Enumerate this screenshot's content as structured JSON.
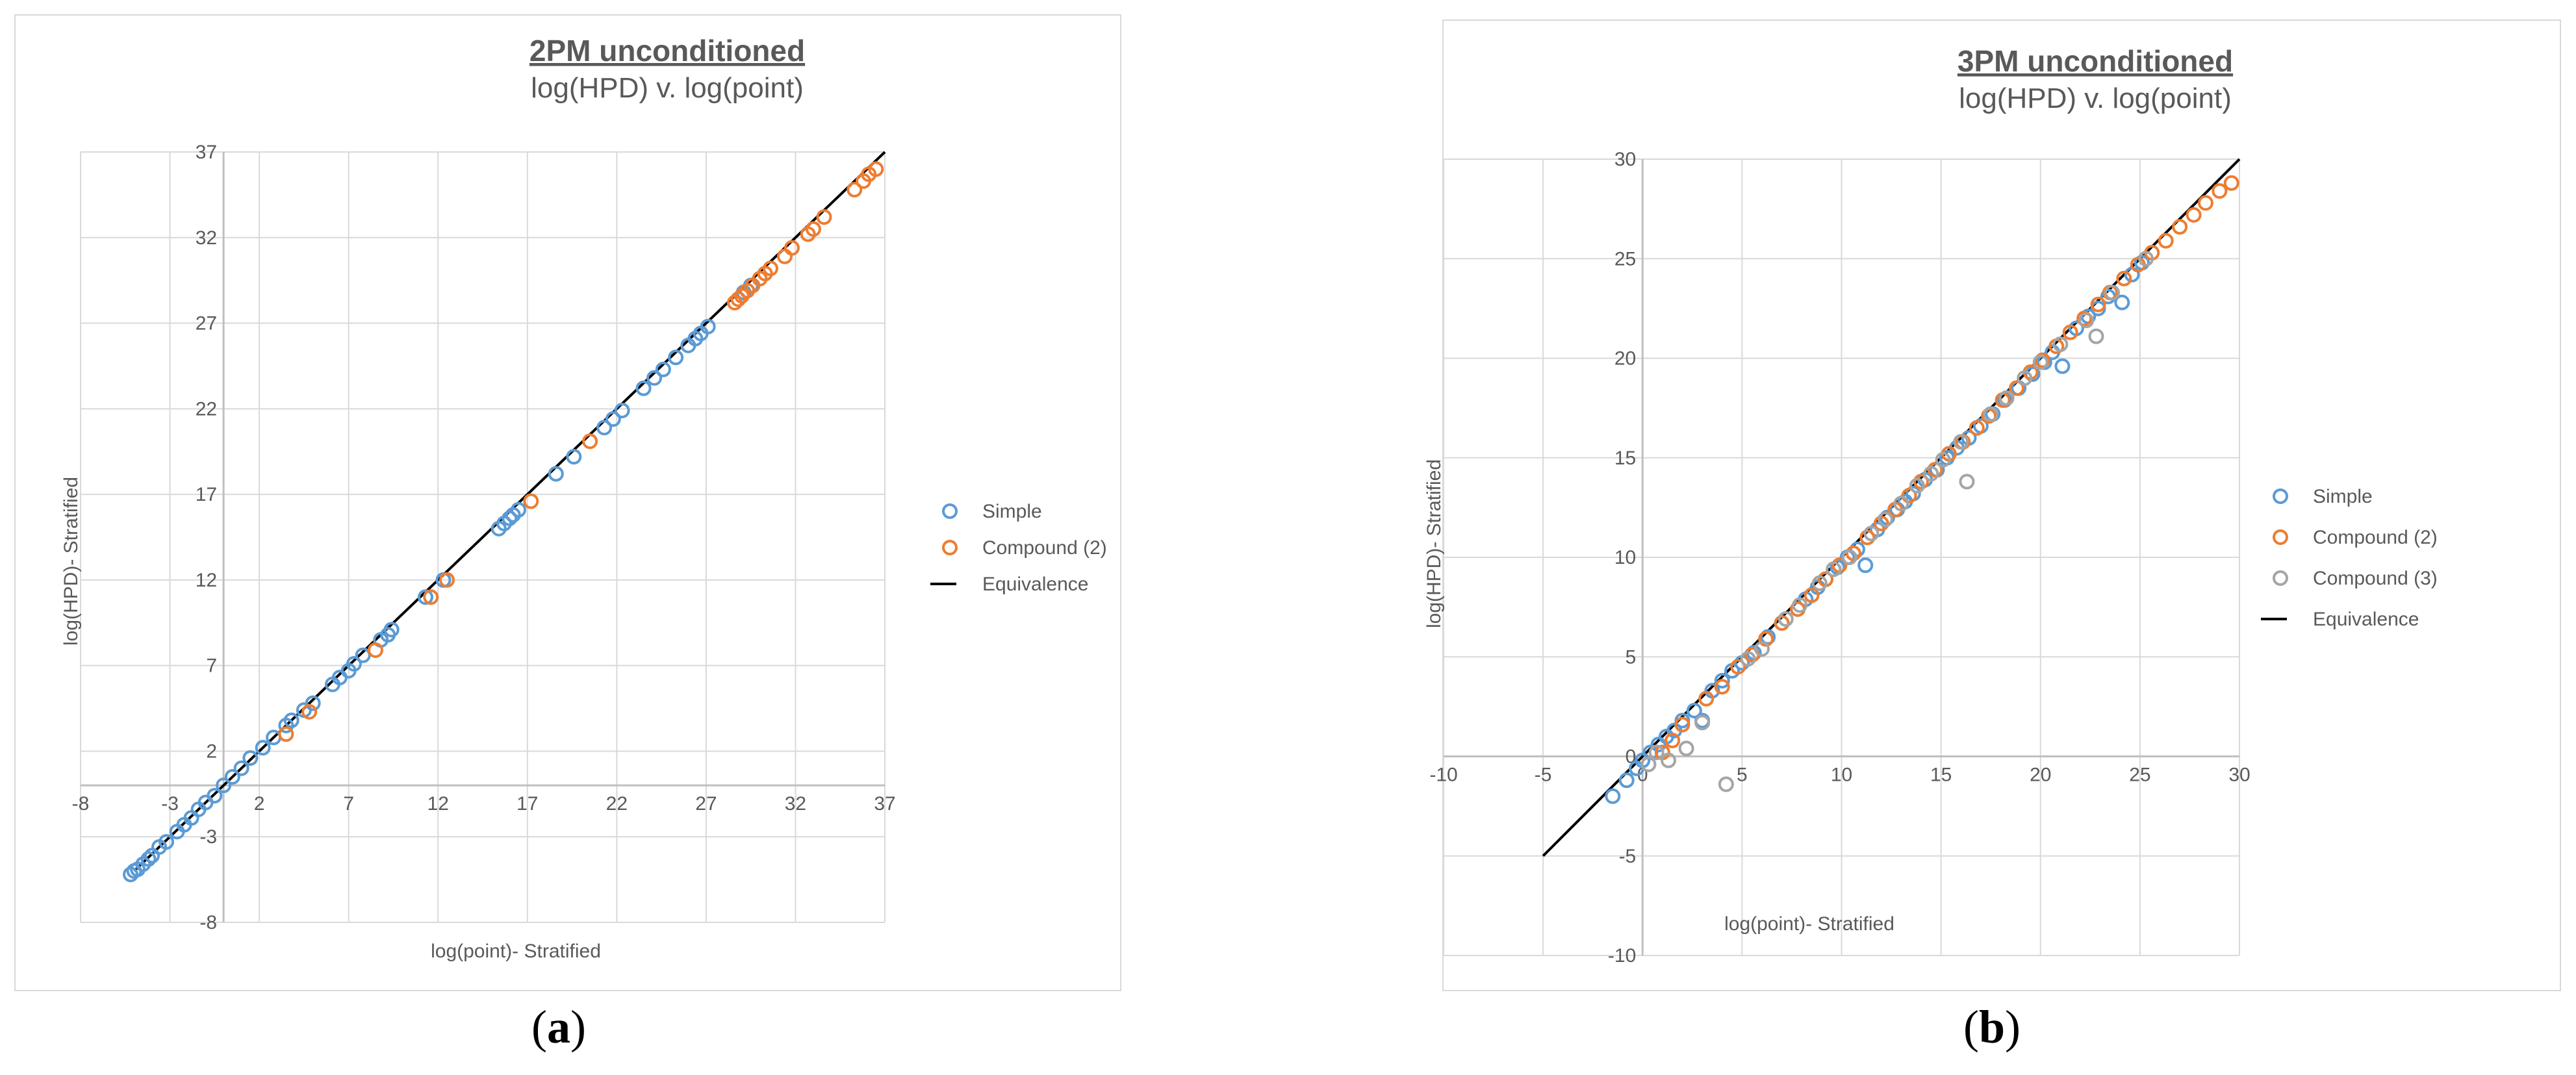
{
  "captions": [
    {
      "open": "(",
      "letter": "a",
      "close": ")"
    },
    {
      "open": "(",
      "letter": "b",
      "close": ")"
    }
  ],
  "chart_data": [
    {
      "type": "scatter",
      "title": "2PM unconditioned",
      "subtitle": "log(HPD) v. log(point)",
      "xlabel": "log(point)- Stratified",
      "ylabel": "log(HPD)- Stratified",
      "xlim": [
        -8,
        37
      ],
      "ylim": [
        -8,
        37
      ],
      "xticks": [
        -8,
        -3,
        2,
        7,
        12,
        17,
        22,
        27,
        32,
        37
      ],
      "yticks": [
        -8,
        -3,
        2,
        7,
        12,
        17,
        22,
        27,
        32,
        37
      ],
      "grid": true,
      "legend_position": "right",
      "series": [
        {
          "name": "Simple",
          "color": "#5b9bd5",
          "marker": "open-circle",
          "x": [
            -5.2,
            -5.0,
            -4.8,
            -4.5,
            -4.2,
            -4.0,
            -3.6,
            -3.2,
            -2.6,
            -2.2,
            -1.8,
            -1.4,
            -1.0,
            -0.5,
            0.0,
            0.5,
            1.0,
            1.5,
            2.2,
            2.8,
            3.5,
            3.8,
            4.5,
            5.0,
            6.1,
            6.5,
            7.0,
            7.3,
            7.8,
            8.8,
            9.2,
            9.4,
            11.3,
            12.3,
            15.4,
            15.7,
            16.0,
            16.2,
            16.5,
            18.6,
            19.6,
            21.3,
            21.8,
            22.3,
            23.5,
            24.1,
            24.6,
            25.3,
            26.0,
            26.4,
            26.7,
            27.1,
            29.1,
            29.5
          ],
          "y": [
            -5.2,
            -5.0,
            -4.9,
            -4.6,
            -4.3,
            -4.1,
            -3.6,
            -3.3,
            -2.7,
            -2.3,
            -1.9,
            -1.4,
            -1.0,
            -0.6,
            0.0,
            0.5,
            1.0,
            1.6,
            2.2,
            2.8,
            3.5,
            3.8,
            4.4,
            4.8,
            5.9,
            6.3,
            6.7,
            7.1,
            7.6,
            8.5,
            8.8,
            9.1,
            11.0,
            12.0,
            15.0,
            15.3,
            15.6,
            15.8,
            16.1,
            18.2,
            19.2,
            20.9,
            21.4,
            21.9,
            23.2,
            23.8,
            24.3,
            25.0,
            25.7,
            26.1,
            26.4,
            26.8,
            28.8,
            29.2
          ]
        },
        {
          "name": "Compound (2)",
          "color": "#ed7d31",
          "marker": "open-circle",
          "x": [
            3.5,
            4.8,
            8.5,
            11.6,
            12.5,
            17.2,
            20.5,
            28.6,
            28.8,
            29.0,
            29.3,
            29.6,
            30.0,
            30.3,
            30.6,
            31.4,
            31.8,
            32.7,
            33.0,
            33.6,
            35.3,
            35.8,
            36.1,
            36.5
          ],
          "y": [
            3.0,
            4.3,
            7.9,
            11.0,
            12.0,
            16.6,
            20.1,
            28.2,
            28.4,
            28.6,
            28.9,
            29.2,
            29.6,
            29.9,
            30.2,
            30.9,
            31.4,
            32.2,
            32.5,
            33.2,
            34.8,
            35.3,
            35.7,
            36.0
          ]
        },
        {
          "name": "Equivalence",
          "color": "#000000",
          "marker": "line",
          "x": [
            -5,
            37
          ],
          "y": [
            -5,
            37
          ]
        }
      ]
    },
    {
      "type": "scatter",
      "title": "3PM unconditioned",
      "subtitle": "log(HPD) v. log(point)",
      "xlabel": "log(point)- Stratified",
      "ylabel": "log(HPD)- Stratified",
      "xlim": [
        -10,
        30
      ],
      "ylim": [
        -10,
        30
      ],
      "xticks": [
        -10,
        -5,
        0,
        5,
        10,
        15,
        20,
        25,
        30
      ],
      "yticks": [
        -10,
        -5,
        0,
        5,
        10,
        15,
        20,
        25,
        30
      ],
      "xtick_labels": [
        "-10",
        "-5",
        "0",
        "5",
        "10",
        "15",
        "20",
        "25",
        "30"
      ],
      "grid": true,
      "legend_position": "right",
      "series": [
        {
          "name": "Simple",
          "color": "#5b9bd5",
          "marker": "open-circle",
          "x": [
            -1.5,
            -0.8,
            -0.3,
            0.0,
            0.4,
            0.8,
            1.2,
            1.6,
            2.0,
            2.6,
            3.0,
            3.5,
            4.0,
            4.5,
            5.0,
            5.6,
            6.3,
            7.0,
            7.8,
            8.2,
            8.8,
            9.2,
            9.8,
            10.3,
            10.8,
            11.2,
            11.8,
            12.3,
            12.8,
            13.2,
            13.6,
            14.2,
            14.8,
            15.3,
            15.8,
            16.4,
            17.0,
            17.6,
            18.2,
            18.9,
            19.6,
            20.2,
            20.6,
            21.1,
            21.8,
            22.4,
            22.9,
            23.4,
            24.1,
            24.6,
            25.1
          ],
          "y": [
            -2.0,
            -1.2,
            -0.6,
            -0.2,
            0.2,
            0.6,
            1.0,
            1.3,
            1.8,
            2.3,
            1.8,
            3.3,
            3.8,
            4.3,
            4.7,
            5.2,
            6.0,
            6.7,
            7.4,
            7.9,
            8.5,
            8.9,
            9.5,
            10.0,
            10.4,
            9.6,
            11.4,
            12.0,
            12.4,
            12.8,
            13.2,
            13.9,
            14.4,
            15.0,
            15.5,
            16.0,
            16.6,
            17.2,
            17.9,
            18.5,
            19.2,
            19.8,
            20.3,
            19.6,
            21.5,
            22.1,
            22.5,
            23.1,
            22.8,
            24.2,
            24.8
          ]
        },
        {
          "name": "Compound (2)",
          "color": "#ed7d31",
          "marker": "open-circle",
          "x": [
            1.0,
            1.5,
            2.0,
            3.2,
            4.0,
            4.8,
            5.5,
            6.2,
            7.0,
            7.8,
            8.5,
            9.2,
            9.9,
            10.6,
            11.3,
            12.0,
            12.7,
            13.4,
            14.0,
            14.7,
            15.4,
            16.1,
            16.8,
            17.4,
            18.1,
            18.8,
            19.5,
            20.1,
            20.8,
            21.5,
            22.2,
            22.9,
            23.5,
            24.2,
            24.9,
            25.6,
            26.3,
            27.0,
            27.7,
            28.3,
            29.0,
            29.6
          ],
          "y": [
            0.2,
            0.8,
            1.6,
            2.9,
            3.5,
            4.5,
            5.1,
            5.9,
            6.7,
            7.4,
            8.1,
            8.9,
            9.6,
            10.2,
            11.0,
            11.7,
            12.4,
            13.1,
            13.8,
            14.4,
            15.2,
            15.8,
            16.5,
            17.1,
            17.9,
            18.5,
            19.3,
            19.9,
            20.6,
            21.3,
            22.0,
            22.7,
            23.3,
            24.0,
            24.7,
            25.3,
            25.9,
            26.6,
            27.2,
            27.8,
            28.4,
            28.8
          ]
        },
        {
          "name": "Compound (3)",
          "color": "#a5a5a5",
          "marker": "open-circle",
          "x": [
            0.3,
            0.7,
            1.3,
            2.2,
            3.0,
            4.2,
            5.3,
            6.0,
            7.2,
            7.9,
            8.9,
            9.6,
            10.4,
            11.5,
            12.2,
            13.0,
            13.8,
            14.5,
            15.1,
            16.0,
            16.3,
            17.5,
            18.3,
            19.2,
            20.0,
            21.0,
            22.3,
            22.8,
            23.6,
            25.3
          ],
          "y": [
            -0.4,
            0.2,
            -0.2,
            0.4,
            1.7,
            -1.4,
            4.9,
            5.4,
            6.9,
            7.6,
            8.7,
            9.4,
            10.0,
            11.2,
            11.9,
            12.7,
            13.6,
            14.2,
            14.9,
            15.8,
            13.8,
            17.2,
            18.0,
            19.0,
            19.8,
            20.7,
            21.9,
            21.1,
            23.3,
            25.0
          ]
        },
        {
          "name": "Equivalence",
          "color": "#000000",
          "marker": "line",
          "x": [
            -5,
            30
          ],
          "y": [
            -5,
            30
          ]
        }
      ]
    }
  ]
}
